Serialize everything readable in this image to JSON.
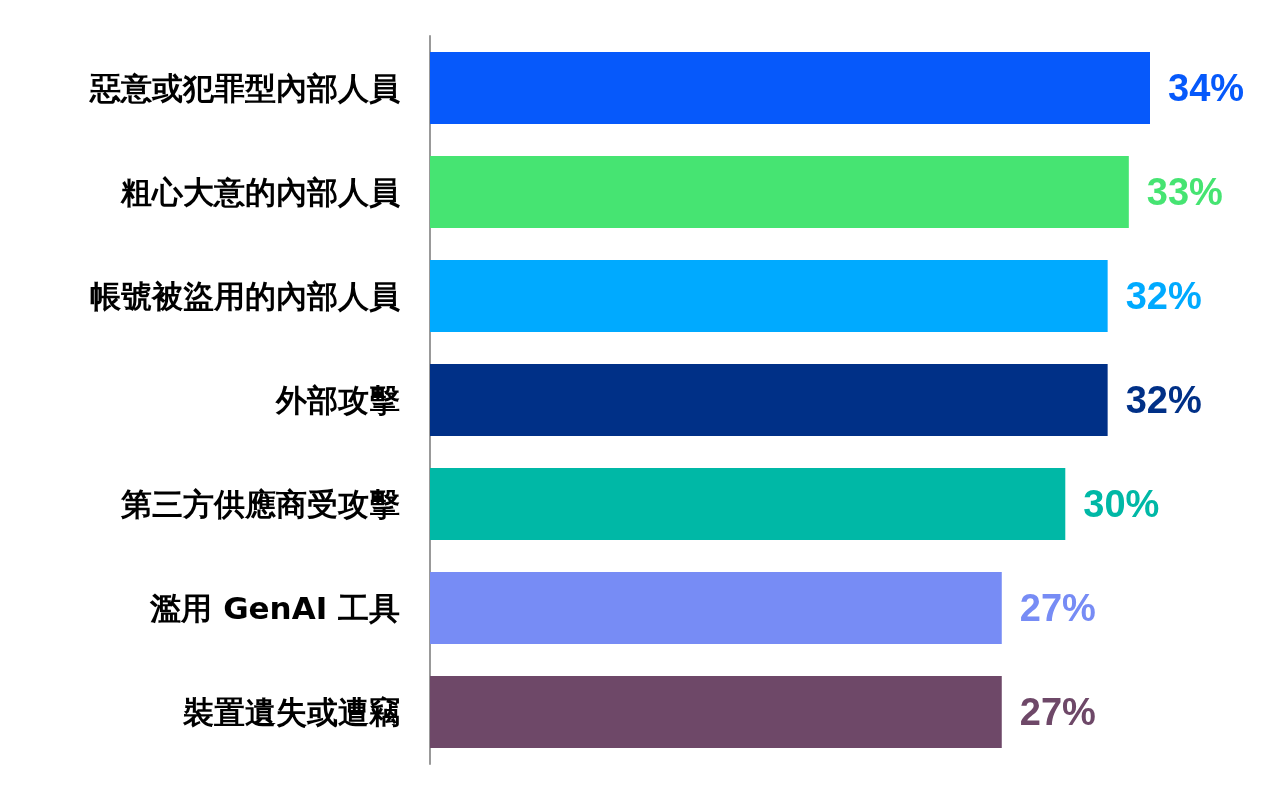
{
  "chart_data": {
    "type": "bar",
    "orientation": "horizontal",
    "categories": [
      "惡意或犯罪型內部人員",
      "粗心大意的內部人員",
      "帳號被盜用的內部人員",
      "外部攻擊",
      "第三方供應商受攻擊",
      "濫用 GenAI 工具",
      "裝置遺失或遭竊"
    ],
    "values": [
      34,
      33,
      32,
      32,
      30,
      27,
      27
    ],
    "colors": [
      "#0659fb",
      "#46e472",
      "#00aaff",
      "#003087",
      "#00b8a6",
      "#778cf5",
      "#6e4868"
    ],
    "value_labels": [
      "34%",
      "33%",
      "32%",
      "32%",
      "30%",
      "27%",
      "27%"
    ],
    "grid": false,
    "tick_labels": "y"
  }
}
